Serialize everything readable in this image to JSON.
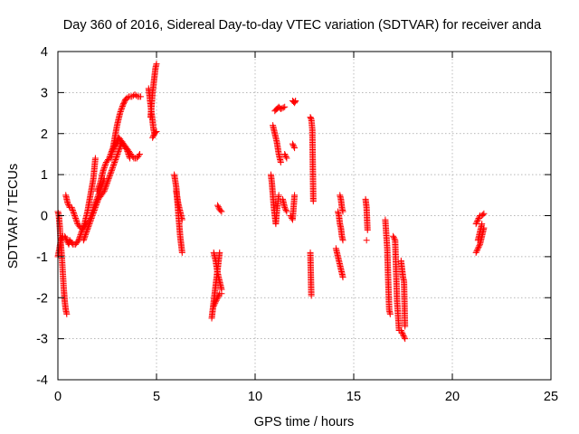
{
  "chart_data": {
    "type": "scatter",
    "title": "Day 360 of 2016, Sidereal Day-to-day VTEC variation (SDTVAR) for receiver anda",
    "xlabel": "GPS time / hours",
    "ylabel": "SDTVAR / TECUs",
    "xlim": [
      0,
      25
    ],
    "ylim": [
      -4,
      4
    ],
    "xticks": [
      0,
      5,
      10,
      15,
      20,
      25
    ],
    "yticks": [
      -4,
      -3,
      -2,
      -1,
      0,
      1,
      2,
      3,
      4
    ],
    "xtick_labels": [
      "0",
      "5",
      "10",
      "15",
      "20",
      "25"
    ],
    "ytick_labels": [
      "-4",
      "-3",
      "-2",
      "-1",
      "0",
      "1",
      "2",
      "3",
      "4"
    ],
    "grid": true,
    "marker": "+",
    "color": "#ff0000",
    "segments": [
      {
        "name": "a1",
        "x": [
          0.0,
          0.05,
          0.1,
          0.15,
          0.2,
          0.25,
          0.3,
          0.35,
          0.4,
          0.45
        ],
        "y": [
          0.1,
          0.0,
          -0.3,
          -0.7,
          -1.0,
          -1.4,
          -1.8,
          -2.1,
          -2.3,
          -2.4
        ]
      },
      {
        "name": "a2",
        "x": [
          0.0,
          0.08,
          0.15,
          0.25,
          0.35,
          0.45,
          0.55,
          0.6
        ],
        "y": [
          -1.0,
          -0.8,
          -0.6,
          -0.5,
          -0.5,
          -0.6,
          -0.7,
          -0.6
        ]
      },
      {
        "name": "a3",
        "x": [
          0.6,
          0.75,
          0.9,
          1.05,
          1.2,
          1.35,
          1.5,
          1.65,
          1.8,
          1.9
        ],
        "y": [
          -0.6,
          -0.7,
          -0.7,
          -0.6,
          -0.4,
          -0.2,
          0.1,
          0.5,
          0.9,
          1.4
        ]
      },
      {
        "name": "a4",
        "x": [
          0.4,
          0.5,
          0.6
        ],
        "y": [
          0.5,
          0.3,
          0.2
        ]
      },
      {
        "name": "a5",
        "x": [
          0.7,
          0.85,
          1.0,
          1.15,
          1.3,
          1.45,
          1.6,
          1.75,
          1.9,
          2.05,
          2.2,
          2.35
        ],
        "y": [
          0.2,
          0.0,
          -0.2,
          -0.3,
          -0.3,
          -0.2,
          -0.1,
          0.1,
          0.3,
          0.5,
          0.7,
          0.9
        ]
      },
      {
        "name": "a6",
        "x": [
          1.3,
          1.45,
          1.6,
          1.75,
          1.9,
          2.05,
          2.2,
          2.35,
          2.5,
          2.65,
          2.8,
          2.95,
          3.1,
          3.25
        ],
        "y": [
          -0.6,
          -0.4,
          -0.2,
          0.0,
          0.2,
          0.4,
          0.5,
          0.6,
          0.8,
          1.0,
          1.2,
          1.4,
          1.6,
          1.8
        ]
      },
      {
        "name": "a7",
        "x": [
          2.0,
          2.15,
          2.3,
          2.45,
          2.6,
          2.75,
          2.9,
          3.05,
          3.2,
          3.35,
          3.5,
          3.65
        ],
        "y": [
          0.6,
          0.8,
          1.1,
          1.3,
          1.4,
          1.6,
          1.7,
          1.8,
          1.8,
          1.7,
          1.6,
          1.4
        ]
      },
      {
        "name": "a8",
        "x": [
          2.8,
          2.95,
          3.1,
          3.25,
          3.4,
          3.55,
          3.7,
          3.85,
          4.0,
          4.15
        ],
        "y": [
          1.6,
          1.8,
          1.9,
          1.8,
          1.7,
          1.6,
          1.5,
          1.4,
          1.4,
          1.5
        ]
      },
      {
        "name": "a9",
        "x": [
          2.7,
          2.85,
          3.0,
          3.15,
          3.3,
          3.45,
          3.6,
          3.75,
          3.9,
          4.05,
          4.2
        ],
        "y": [
          1.4,
          1.8,
          2.2,
          2.5,
          2.7,
          2.85,
          2.9,
          2.9,
          2.95,
          2.9,
          2.9
        ]
      },
      {
        "name": "a10",
        "x": [
          4.7,
          4.75,
          4.8,
          4.85,
          4.9,
          4.95,
          5.0
        ],
        "y": [
          2.4,
          2.7,
          3.0,
          3.2,
          3.4,
          3.6,
          3.7
        ]
      },
      {
        "name": "a11",
        "x": [
          4.6,
          4.65,
          4.7,
          4.75,
          4.8,
          4.85,
          4.9
        ],
        "y": [
          3.1,
          2.9,
          2.7,
          2.5,
          2.3,
          2.1,
          2.0
        ]
      },
      {
        "name": "a12",
        "x": [
          4.8,
          4.9,
          5.0
        ],
        "y": [
          1.9,
          2.0,
          2.05
        ]
      },
      {
        "name": "b1",
        "x": [
          5.9,
          6.0,
          6.05,
          6.1,
          6.15,
          6.2,
          6.25,
          6.3
        ],
        "y": [
          1.0,
          0.7,
          0.4,
          0.1,
          -0.2,
          -0.5,
          -0.7,
          -0.9
        ]
      },
      {
        "name": "b2",
        "x": [
          6.0,
          6.1,
          6.2,
          6.3
        ],
        "y": [
          0.6,
          0.3,
          0.1,
          -0.1
        ]
      },
      {
        "name": "c1",
        "x": [
          7.8,
          7.85,
          7.9,
          7.95,
          8.0,
          8.05,
          8.1,
          8.15,
          8.2
        ],
        "y": [
          -2.5,
          -2.3,
          -2.1,
          -1.9,
          -1.7,
          -1.5,
          -1.3,
          -1.1,
          -0.9
        ]
      },
      {
        "name": "c2",
        "x": [
          7.9,
          8.0,
          8.1,
          8.2,
          8.3
        ],
        "y": [
          -0.9,
          -1.1,
          -1.4,
          -1.6,
          -1.8
        ]
      },
      {
        "name": "c3",
        "x": [
          7.9,
          8.0,
          8.1,
          8.2,
          8.3
        ],
        "y": [
          -2.2,
          -2.1,
          -2.0,
          -1.9,
          -1.9
        ]
      },
      {
        "name": "c4",
        "x": [
          8.1,
          8.2,
          8.3
        ],
        "y": [
          0.25,
          0.15,
          0.1
        ]
      },
      {
        "name": "d1",
        "x": [
          10.8,
          10.85,
          10.9,
          10.95,
          11.0,
          11.05,
          11.1,
          11.2
        ],
        "y": [
          1.0,
          0.8,
          0.5,
          0.2,
          0.0,
          -0.2,
          0.1,
          0.5
        ]
      },
      {
        "name": "d2",
        "x": [
          10.9,
          11.0,
          11.1,
          11.2,
          11.3
        ],
        "y": [
          2.2,
          2.0,
          1.8,
          1.5,
          1.3
        ]
      },
      {
        "name": "d3",
        "x": [
          11.0,
          11.1,
          11.2,
          11.3,
          11.5
        ],
        "y": [
          2.55,
          2.6,
          2.65,
          2.6,
          2.65
        ]
      },
      {
        "name": "d4",
        "x": [
          11.4,
          11.5,
          11.6
        ],
        "y": [
          0.4,
          0.2,
          0.1
        ]
      },
      {
        "name": "d5",
        "x": [
          11.5,
          11.6
        ],
        "y": [
          1.5,
          1.4
        ]
      },
      {
        "name": "d6",
        "x": [
          11.9,
          12.0,
          12.05
        ],
        "y": [
          2.8,
          2.75,
          2.8
        ]
      },
      {
        "name": "d7",
        "x": [
          11.9,
          12.0
        ],
        "y": [
          1.75,
          1.65
        ]
      },
      {
        "name": "d8",
        "x": [
          11.8,
          11.9,
          12.0
        ],
        "y": [
          0.0,
          -0.1,
          0.5
        ]
      },
      {
        "name": "d9",
        "x": [
          12.8,
          12.85,
          12.9,
          12.95
        ],
        "y": [
          2.4,
          2.35,
          2.1,
          0.35
        ]
      },
      {
        "name": "d10",
        "x": [
          12.8,
          12.85
        ],
        "y": [
          -0.9,
          -1.95
        ]
      },
      {
        "name": "e1",
        "x": [
          14.1,
          14.15,
          14.2,
          14.25,
          14.3,
          14.35,
          14.4,
          14.45
        ],
        "y": [
          -0.8,
          -0.9,
          -1.0,
          -1.1,
          -1.2,
          -1.3,
          -1.4,
          -1.5
        ]
      },
      {
        "name": "e2",
        "x": [
          14.2,
          14.25,
          14.3,
          14.35,
          14.4,
          14.45
        ],
        "y": [
          0.1,
          0.0,
          -0.2,
          -0.3,
          -0.5,
          -0.6
        ]
      },
      {
        "name": "e3",
        "x": [
          14.3,
          14.35,
          14.4,
          14.45
        ],
        "y": [
          0.5,
          0.4,
          0.2,
          0.1
        ]
      },
      {
        "name": "f1",
        "x": [
          15.6,
          15.65,
          15.7
        ],
        "y": [
          0.4,
          0.2,
          -0.35
        ]
      },
      {
        "name": "f2",
        "x": [
          15.65
        ],
        "y": [
          -0.6
        ]
      },
      {
        "name": "g1",
        "x": [
          16.6,
          16.7,
          16.75,
          16.8,
          16.85
        ],
        "y": [
          -0.1,
          -0.8,
          -1.6,
          -2.3,
          -2.4
        ]
      },
      {
        "name": "g2",
        "x": [
          17.0,
          17.1,
          17.2,
          17.3
        ],
        "y": [
          -0.5,
          -0.6,
          -2.1,
          -2.8
        ]
      },
      {
        "name": "g3",
        "x": [
          17.4,
          17.45,
          17.5,
          17.55,
          17.6
        ],
        "y": [
          -1.1,
          -1.3,
          -1.5,
          -1.6,
          -2.7
        ]
      },
      {
        "name": "g4",
        "x": [
          17.4,
          17.5,
          17.6
        ],
        "y": [
          -2.8,
          -2.9,
          -3.0
        ]
      },
      {
        "name": "h1",
        "x": [
          21.2,
          21.3,
          21.4,
          21.5,
          21.6
        ],
        "y": [
          -0.2,
          -0.1,
          0.0,
          0.0,
          0.05
        ]
      },
      {
        "name": "h2",
        "x": [
          21.2,
          21.3,
          21.4,
          21.5,
          21.6
        ],
        "y": [
          -0.9,
          -0.8,
          -0.7,
          -0.5,
          -0.3
        ]
      },
      {
        "name": "h3",
        "x": [
          21.3,
          21.4,
          21.5
        ],
        "y": [
          -0.6,
          -0.4,
          -0.2
        ]
      }
    ]
  }
}
